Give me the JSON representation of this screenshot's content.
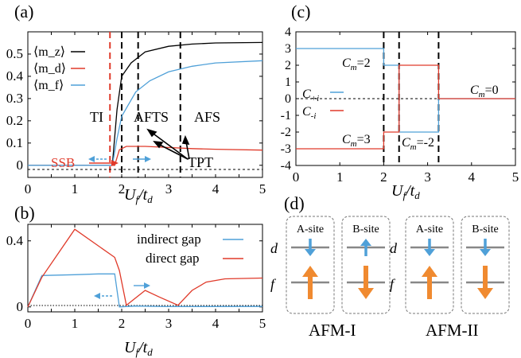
{
  "panels": {
    "a": {
      "label": "(a)"
    },
    "b": {
      "label": "(b)"
    },
    "c": {
      "label": "(c)"
    },
    "d": {
      "label": "(d)"
    }
  },
  "chart_data": [
    {
      "panel": "a",
      "type": "line",
      "xlabel": "U_f/t_d",
      "xlim": [
        0,
        5
      ],
      "ylim": [
        0,
        0.6
      ],
      "x_ticks": [
        "0",
        "0.5",
        "1",
        "1.5",
        "2",
        "2.5",
        "3",
        "3.5",
        "4",
        "4.5",
        "5"
      ],
      "y_ticks": [
        "0",
        "0.1",
        "0.2",
        "0.3",
        "0.4",
        "0.5"
      ],
      "legend": {
        "position": "top-left"
      },
      "series": [
        {
          "name": "⟨m_z⟩",
          "color": "#000000",
          "points": [
            [
              0,
              0
            ],
            [
              1.8,
              0
            ],
            [
              1.9,
              0.25
            ],
            [
              2.0,
              0.4
            ],
            [
              2.2,
              0.46
            ],
            [
              2.5,
              0.51
            ],
            [
              3.0,
              0.535
            ],
            [
              3.5,
              0.545
            ],
            [
              4.0,
              0.55
            ],
            [
              5.0,
              0.552
            ]
          ]
        },
        {
          "name": "⟨m_d⟩",
          "color": "#e03a2a",
          "points": [
            [
              0,
              0
            ],
            [
              1.85,
              0
            ],
            [
              1.95,
              0.07
            ],
            [
              2.1,
              0.085
            ],
            [
              2.5,
              0.085
            ],
            [
              3.0,
              0.08
            ],
            [
              3.5,
              0.075
            ],
            [
              4.0,
              0.072
            ],
            [
              5.0,
              0.068
            ]
          ]
        },
        {
          "name": "⟨m_f⟩",
          "color": "#4fa0d8",
          "points": [
            [
              0,
              0
            ],
            [
              1.8,
              0
            ],
            [
              1.9,
              0.12
            ],
            [
              2.0,
              0.22
            ],
            [
              2.3,
              0.33
            ],
            [
              2.6,
              0.38
            ],
            [
              3.0,
              0.42
            ],
            [
              3.5,
              0.445
            ],
            [
              4.0,
              0.46
            ],
            [
              5.0,
              0.47
            ]
          ]
        }
      ],
      "vlines": [
        {
          "x": 1.75,
          "color": "#e03a2a"
        },
        {
          "x": 2.0,
          "color": "#000000"
        },
        {
          "x": 2.35,
          "color": "#000000"
        },
        {
          "x": 3.25,
          "color": "#000000"
        }
      ],
      "annotations": [
        "TI",
        "AFTS",
        "AFS",
        "TPT",
        "SSB"
      ]
    },
    {
      "panel": "b",
      "type": "line",
      "xlabel": "U_f/t_d",
      "xlim": [
        0,
        5
      ],
      "ylim": [
        -0.03,
        0.5
      ],
      "x_ticks": [
        "0",
        "0.5",
        "1",
        "1.5",
        "2",
        "2.5",
        "3",
        "3.5",
        "4",
        "4.5",
        "5"
      ],
      "y_ticks": [
        "0",
        "0.4"
      ],
      "legend": {
        "position": "top-right"
      },
      "series": [
        {
          "name": "indirect gap",
          "color": "#4fa0d8",
          "points": [
            [
              0,
              0
            ],
            [
              0.3,
              0.19
            ],
            [
              1.0,
              0.195
            ],
            [
              1.5,
              0.2
            ],
            [
              1.85,
              0.2
            ],
            [
              1.95,
              0.0
            ],
            [
              2.3,
              0.005
            ],
            [
              3.0,
              0.002
            ],
            [
              5.0,
              0.003
            ]
          ]
        },
        {
          "name": "direct gap",
          "color": "#e03a2a",
          "points": [
            [
              0,
              0
            ],
            [
              0.3,
              0.18
            ],
            [
              1.0,
              0.47
            ],
            [
              1.85,
              0.3
            ],
            [
              1.95,
              0.22
            ],
            [
              2.1,
              0.01
            ],
            [
              2.5,
              0.1
            ],
            [
              2.8,
              0.06
            ],
            [
              3.2,
              0.01
            ],
            [
              3.5,
              0.1
            ],
            [
              3.8,
              0.15
            ],
            [
              4.2,
              0.17
            ],
            [
              5.0,
              0.175
            ]
          ]
        }
      ]
    },
    {
      "panel": "c",
      "type": "line",
      "xlabel": "U_f/t_d",
      "xlim": [
        0,
        5
      ],
      "ylim": [
        -4,
        4
      ],
      "x_ticks": [
        "0",
        "1",
        "2",
        "3",
        "4",
        "5"
      ],
      "y_ticks": [
        "-4",
        "-3",
        "-2",
        "-1",
        "0",
        "1",
        "2",
        "3",
        "4"
      ],
      "legend": {
        "position": "middle-left"
      },
      "series": [
        {
          "name": "C_{+i}",
          "color": "#4fa0d8",
          "points": [
            [
              0,
              3
            ],
            [
              2.0,
              3
            ],
            [
              2.0,
              2
            ],
            [
              2.35,
              2
            ],
            [
              2.35,
              -2
            ],
            [
              3.25,
              -2
            ],
            [
              3.25,
              0
            ],
            [
              5,
              0
            ]
          ]
        },
        {
          "name": "C_{-i}",
          "color": "#e03a2a",
          "points": [
            [
              0,
              -3
            ],
            [
              2.0,
              -3
            ],
            [
              2.0,
              -2
            ],
            [
              2.35,
              -2
            ],
            [
              2.35,
              2
            ],
            [
              3.25,
              2
            ],
            [
              3.25,
              0
            ],
            [
              5,
              0
            ]
          ]
        }
      ],
      "vlines": [
        {
          "x": 2.0
        },
        {
          "x": 2.35
        },
        {
          "x": 3.25
        }
      ],
      "annotations": [
        "C_m=2",
        "C_m=3",
        "C_m=-2",
        "C_m=0"
      ]
    }
  ],
  "diagram": {
    "groups": [
      {
        "name": "AFM-I",
        "sites": [
          {
            "title": "A-site",
            "d_spin": "down",
            "f_spin": "up"
          },
          {
            "title": "B-site",
            "d_spin": "up",
            "f_spin": "down"
          }
        ]
      },
      {
        "name": "AFM-II",
        "sites": [
          {
            "title": "A-site",
            "d_spin": "down",
            "f_spin": "up"
          },
          {
            "title": "B-site",
            "d_spin": "down",
            "f_spin": "down"
          }
        ]
      }
    ],
    "row_labels": [
      "d",
      "f"
    ]
  },
  "colors": {
    "blue": "#4fa0d8",
    "red": "#e03a2a",
    "orange": "#f08a30",
    "black": "#000000"
  }
}
